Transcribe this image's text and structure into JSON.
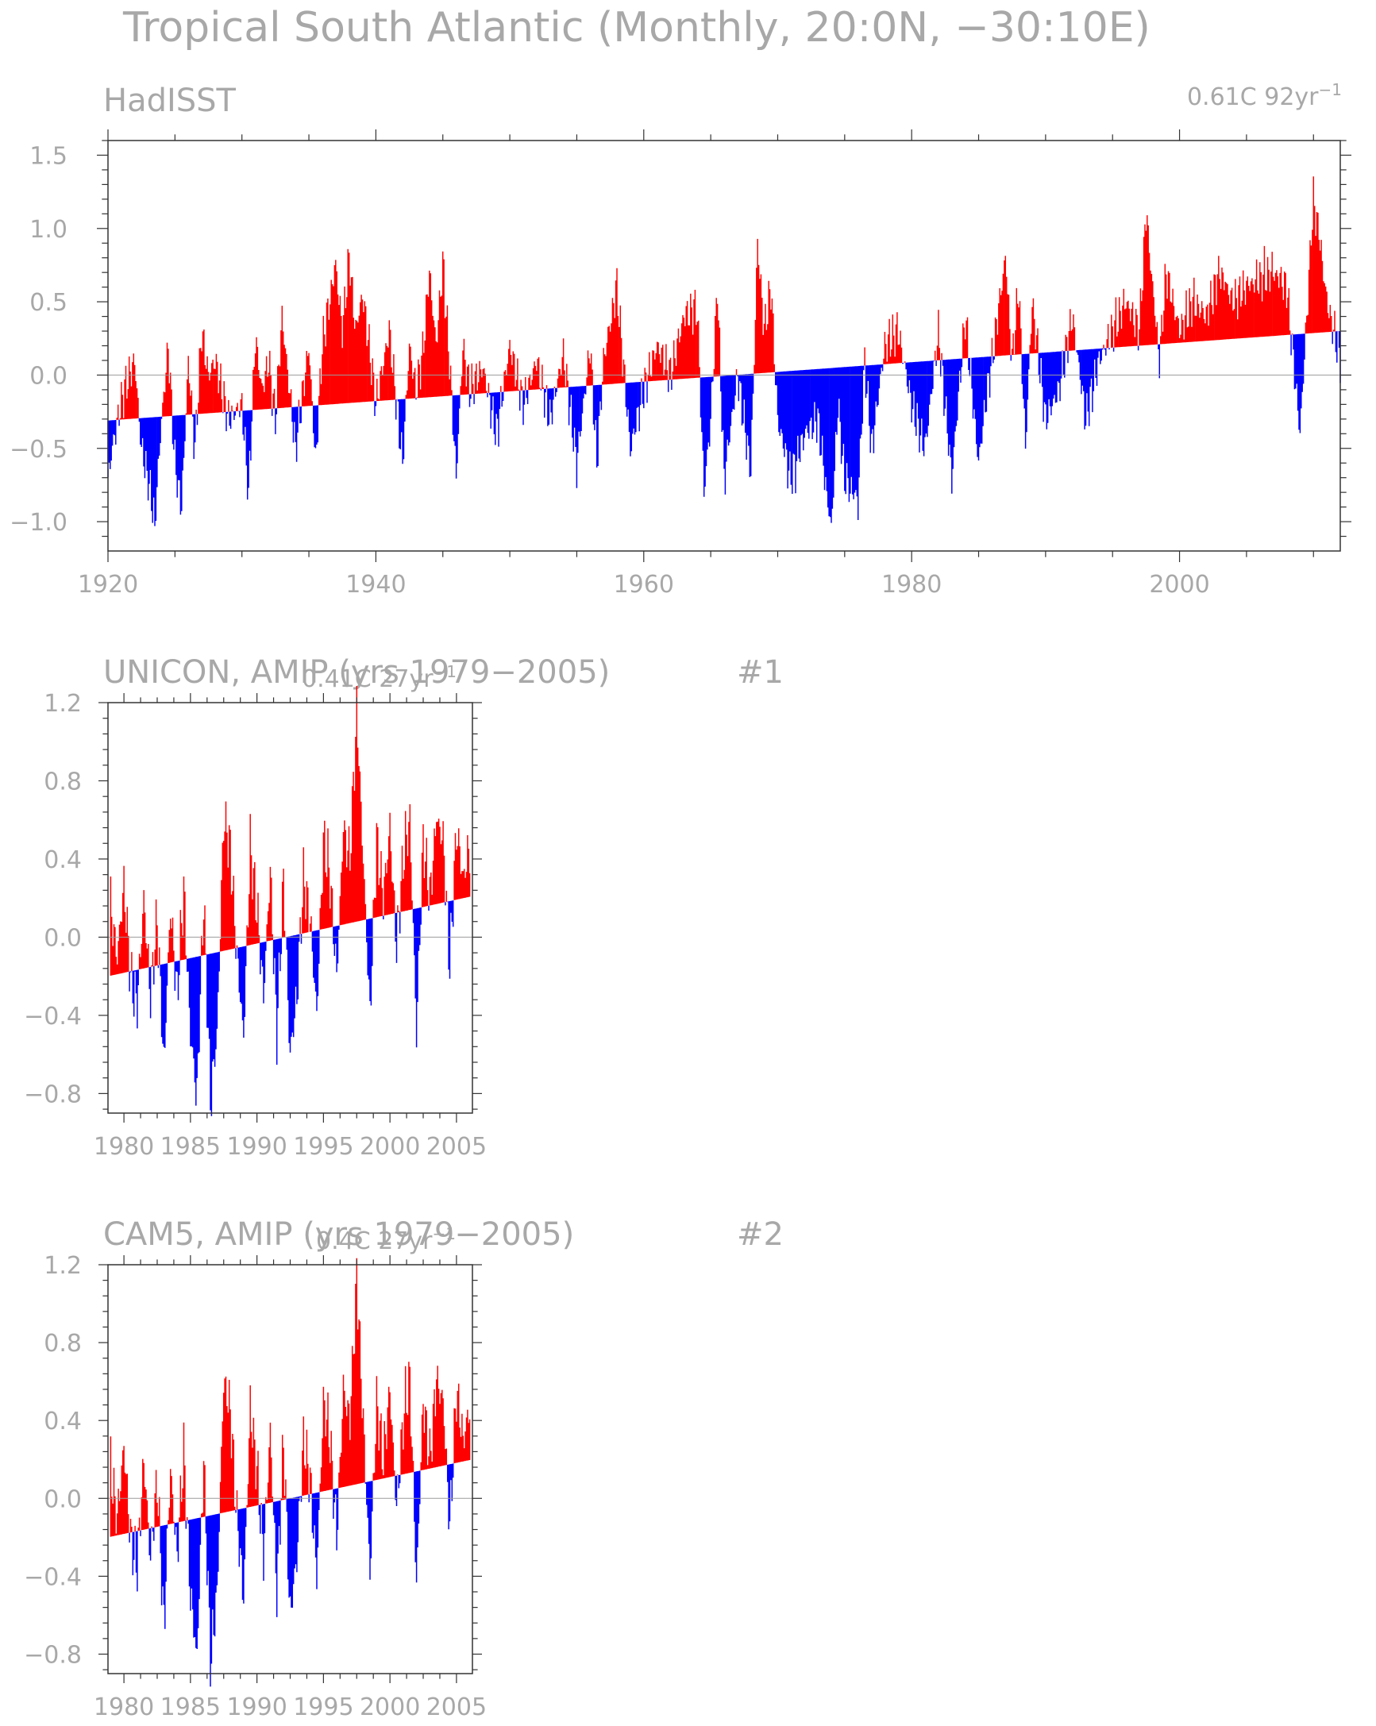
{
  "page": {
    "title": "Tropical South Atlantic (Monthly, 20:0N, −30:10E)"
  },
  "colors": {
    "positive": "#ff0000",
    "negative": "#0000ff",
    "axis": "#9c9c9c",
    "text": "#a8a8a8"
  },
  "chart_data": [
    {
      "type": "area",
      "title": "HadISST",
      "rate_label": "0.61C 92yr",
      "rate_superscript": "−1",
      "xlim": [
        1920,
        2012
      ],
      "ylim": [
        -1.2,
        1.6
      ],
      "xticks": [
        1920,
        1940,
        1960,
        1980,
        2000
      ],
      "xtick_labels": [
        "1920",
        "1940",
        "1960",
        "1980",
        "2000"
      ],
      "yticks": [
        1.5,
        1.0,
        0.5,
        0.0,
        -0.5,
        -1.0
      ],
      "ytick_labels": [
        "1.5",
        "1.0",
        "0.5",
        "0.0",
        "−0.5",
        "−1.0"
      ],
      "trend": {
        "start": -0.31,
        "end": 0.3
      },
      "series_keypoints": {
        "x": [
          1920.0,
          1920.5,
          1921.2,
          1922.0,
          1922.5,
          1923.0,
          1923.5,
          1924.0,
          1924.5,
          1925.0,
          1925.5,
          1926.0,
          1926.5,
          1927.0,
          1927.5,
          1928.0,
          1929.0,
          1930.0,
          1930.5,
          1931.0,
          1931.5,
          1932.0,
          1932.5,
          1933.0,
          1934.0,
          1935.0,
          1935.5,
          1936.0,
          1937.0,
          1937.5,
          1938.0,
          1938.5,
          1939.0,
          1939.5,
          1940.0,
          1941.0,
          1942.0,
          1942.5,
          1943.0,
          1943.5,
          1944.0,
          1944.5,
          1945.0,
          1945.5,
          1946.0,
          1946.5,
          1947.0,
          1948.0,
          1949.0,
          1950.0,
          1951.0,
          1952.0,
          1953.0,
          1954.0,
          1955.0,
          1956.0,
          1956.5,
          1957.0,
          1958.0,
          1959.0,
          1960.0,
          1961.0,
          1962.0,
          1963.0,
          1964.0,
          1964.5,
          1965.0,
          1965.5,
          1966.0,
          1967.0,
          1968.0,
          1968.5,
          1969.0,
          1969.5,
          1970.0,
          1971.0,
          1972.0,
          1973.0,
          1974.0,
          1974.5,
          1975.0,
          1976.0,
          1976.5,
          1977.0,
          1978.0,
          1979.0,
          1980.0,
          1981.0,
          1982.0,
          1983.0,
          1984.0,
          1985.0,
          1985.5,
          1986.0,
          1987.0,
          1987.5,
          1988.0,
          1988.5,
          1989.0,
          1990.0,
          1991.0,
          1992.0,
          1993.0,
          1994.0,
          1995.0,
          1996.0,
          1997.0,
          1997.5,
          1998.0,
          1998.5,
          1999.0,
          2000.0,
          2001.0,
          2002.0,
          2003.0,
          2004.0,
          2005.0,
          2006.0,
          2007.0,
          2008.0,
          2009.0,
          2009.5,
          2010.0,
          2010.5,
          2011.0,
          2011.5,
          2012.0
        ],
        "y": [
          -0.7,
          -0.4,
          -0.1,
          0.1,
          -0.5,
          -0.7,
          -1.0,
          -0.3,
          0.2,
          -0.6,
          -0.9,
          0.1,
          -0.5,
          0.3,
          0.0,
          0.1,
          -0.3,
          -0.2,
          -0.8,
          0.25,
          -0.1,
          0.1,
          -0.3,
          0.4,
          -0.5,
          0.2,
          -0.6,
          0.2,
          0.75,
          0.3,
          0.8,
          0.3,
          0.55,
          0.2,
          -0.2,
          0.3,
          -0.6,
          0.2,
          -0.1,
          0.15,
          0.7,
          0.2,
          0.75,
          0.1,
          -0.7,
          0.2,
          -0.1,
          0.05,
          -0.4,
          0.2,
          -0.2,
          0.1,
          -0.3,
          0.15,
          -0.6,
          0.2,
          -0.6,
          0.1,
          0.6,
          -0.5,
          -0.1,
          0.2,
          0.0,
          0.4,
          0.45,
          -0.8,
          -0.3,
          0.6,
          -0.7,
          0.0,
          -0.65,
          0.9,
          0.3,
          0.6,
          -0.3,
          -0.7,
          -0.4,
          -0.3,
          -1.05,
          -0.2,
          -0.7,
          -0.85,
          0.1,
          -0.5,
          0.2,
          0.3,
          -0.2,
          -0.5,
          0.3,
          -0.7,
          0.4,
          -0.6,
          -0.2,
          0.1,
          0.8,
          0.1,
          0.6,
          -0.5,
          0.5,
          -0.3,
          -0.1,
          0.4,
          -0.3,
          0.1,
          0.3,
          0.5,
          0.3,
          1.1,
          0.6,
          0.1,
          0.7,
          0.3,
          0.5,
          0.4,
          0.7,
          0.5,
          0.6,
          0.65,
          0.7,
          0.6,
          -0.4,
          0.4,
          1.2,
          0.9,
          0.5,
          0.3,
          0.1
        ]
      }
    },
    {
      "type": "area",
      "title": "UNICON, AMIP (yrs 1979−2005)",
      "index": "#1",
      "rate_label": "0.41C 27yr",
      "rate_superscript": "−1",
      "xlim": [
        1978.8,
        2006.2
      ],
      "ylim": [
        -0.9,
        1.2
      ],
      "xticks": [
        1980,
        1985,
        1990,
        1995,
        2000,
        2005
      ],
      "xtick_labels": [
        "1980",
        "1985",
        "1990",
        "1995",
        "2000",
        "2005"
      ],
      "yticks": [
        1.2,
        0.8,
        0.4,
        0.0,
        -0.4,
        -0.8
      ],
      "ytick_labels": [
        "1.2",
        "0.8",
        "0.4",
        "0.0",
        "−0.4",
        "−0.8"
      ],
      "trend": {
        "start": -0.2,
        "end": 0.21
      },
      "series_keypoints": {
        "x": [
          1979.0,
          1979.5,
          1980.0,
          1980.5,
          1981.0,
          1981.5,
          1982.0,
          1982.5,
          1983.0,
          1983.5,
          1984.0,
          1984.5,
          1985.0,
          1985.5,
          1986.0,
          1986.5,
          1987.0,
          1987.5,
          1988.0,
          1988.5,
          1989.0,
          1989.5,
          1990.0,
          1990.5,
          1991.0,
          1991.5,
          1992.0,
          1992.5,
          1993.0,
          1993.5,
          1994.0,
          1994.5,
          1995.0,
          1995.5,
          1996.0,
          1996.5,
          1997.0,
          1997.5,
          1998.0,
          1998.5,
          1999.0,
          1999.5,
          2000.0,
          2000.5,
          2001.0,
          2001.5,
          2002.0,
          2002.5,
          2003.0,
          2003.5,
          2004.0,
          2004.5,
          2005.0,
          2005.5,
          2006.0
        ],
        "y": [
          0.15,
          -0.1,
          0.27,
          -0.2,
          -0.35,
          0.2,
          -0.3,
          0.1,
          -0.65,
          0.15,
          -0.3,
          0.25,
          -0.5,
          -0.8,
          0.2,
          -0.82,
          -0.5,
          0.6,
          0.45,
          -0.1,
          -0.5,
          0.45,
          0.15,
          -0.3,
          0.35,
          -0.5,
          0.3,
          -0.6,
          -0.3,
          0.3,
          0.1,
          -0.4,
          0.5,
          0.3,
          -0.2,
          0.55,
          0.4,
          1.15,
          0.4,
          -0.4,
          0.5,
          0.2,
          0.55,
          -0.05,
          0.4,
          0.6,
          -0.5,
          0.5,
          0.2,
          0.6,
          0.5,
          -0.15,
          0.55,
          0.3,
          0.45
        ]
      }
    },
    {
      "type": "area",
      "title": "CAM5, AMIP (yrs 1979−2005)",
      "index": "#2",
      "rate_label": "0.4C 27yr",
      "rate_superscript": "−1",
      "xlim": [
        1978.8,
        2006.2
      ],
      "ylim": [
        -0.9,
        1.2
      ],
      "xticks": [
        1980,
        1985,
        1990,
        1995,
        2000,
        2005
      ],
      "xtick_labels": [
        "1980",
        "1985",
        "1990",
        "1995",
        "2000",
        "2005"
      ],
      "yticks": [
        1.2,
        0.8,
        0.4,
        0.0,
        -0.4,
        -0.8
      ],
      "ytick_labels": [
        "1.2",
        "0.8",
        "0.4",
        "0.0",
        "−0.4",
        "−0.8"
      ],
      "trend": {
        "start": -0.2,
        "end": 0.2
      },
      "series_keypoints": {
        "x": [
          1979.0,
          1979.5,
          1980.0,
          1980.5,
          1981.0,
          1981.5,
          1982.0,
          1982.5,
          1983.0,
          1983.5,
          1984.0,
          1984.5,
          1985.0,
          1985.5,
          1986.0,
          1986.5,
          1987.0,
          1987.5,
          1988.0,
          1988.5,
          1989.0,
          1989.5,
          1990.0,
          1990.5,
          1991.0,
          1991.5,
          1992.0,
          1992.5,
          1993.0,
          1993.5,
          1994.0,
          1994.5,
          1995.0,
          1995.5,
          1996.0,
          1996.5,
          1997.0,
          1997.5,
          1998.0,
          1998.5,
          1999.0,
          1999.5,
          2000.0,
          2000.5,
          2001.0,
          2001.5,
          2002.0,
          2002.5,
          2003.0,
          2003.5,
          2004.0,
          2004.5,
          2005.0,
          2005.5,
          2006.0
        ],
        "y": [
          0.15,
          -0.1,
          0.27,
          -0.2,
          -0.35,
          0.2,
          -0.3,
          0.1,
          -0.65,
          0.15,
          -0.3,
          0.25,
          -0.5,
          -0.8,
          0.2,
          -0.82,
          -0.5,
          0.6,
          0.45,
          -0.1,
          -0.5,
          0.45,
          0.15,
          -0.3,
          0.35,
          -0.5,
          0.3,
          -0.6,
          -0.3,
          0.3,
          0.1,
          -0.4,
          0.5,
          0.3,
          -0.2,
          0.55,
          0.4,
          1.13,
          0.4,
          -0.4,
          0.5,
          0.2,
          0.55,
          -0.05,
          0.4,
          0.62,
          -0.45,
          0.5,
          0.2,
          0.6,
          0.5,
          -0.15,
          0.55,
          0.3,
          0.45
        ]
      }
    }
  ]
}
